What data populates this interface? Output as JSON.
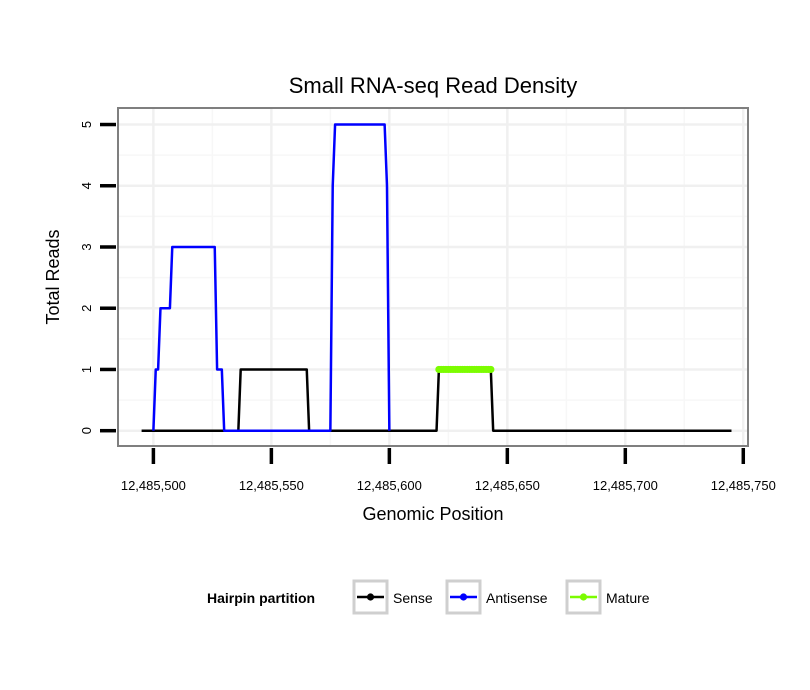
{
  "chart_data": {
    "type": "line",
    "title": "Small RNA-seq Read Density",
    "xlabel": "Genomic Position",
    "ylabel": "Total Reads",
    "xlim": [
      12485485,
      12485752
    ],
    "ylim": [
      -0.25,
      5.27
    ],
    "x_ticks": [
      12485500,
      12485550,
      12485600,
      12485650,
      12485700,
      12485750
    ],
    "x_tick_labels": [
      "12,485,500",
      "12,485,550",
      "12,485,600",
      "12,485,650",
      "12,485,700",
      "12,485,750"
    ],
    "y_ticks": [
      0,
      1,
      2,
      3,
      4,
      5
    ],
    "y_tick_labels": [
      "0",
      "1",
      "2",
      "3",
      "4",
      "5"
    ],
    "grid": true,
    "legend": {
      "title": "Hairpin partition",
      "position": "bottom",
      "entries": [
        "Sense",
        "Antisense",
        "Mature"
      ]
    },
    "series": [
      {
        "name": "Sense",
        "color": "#000000",
        "markers": false,
        "points": [
          [
            12485495,
            0
          ],
          [
            12485536,
            0
          ],
          [
            12485537,
            1
          ],
          [
            12485565,
            1
          ],
          [
            12485566,
            0
          ],
          [
            12485620,
            0
          ],
          [
            12485621,
            1
          ],
          [
            12485643,
            1
          ],
          [
            12485644,
            0
          ],
          [
            12485745,
            0
          ]
        ]
      },
      {
        "name": "Antisense",
        "color": "#0000ff",
        "markers": false,
        "points": [
          [
            12485500,
            0
          ],
          [
            12485501,
            1
          ],
          [
            12485502,
            1
          ],
          [
            12485503,
            2
          ],
          [
            12485507,
            2
          ],
          [
            12485508,
            3
          ],
          [
            12485526,
            3
          ],
          [
            12485527,
            1
          ],
          [
            12485529,
            1
          ],
          [
            12485530,
            0
          ],
          [
            12485575,
            0
          ],
          [
            12485576,
            4
          ],
          [
            12485577,
            5
          ],
          [
            12485598,
            5
          ],
          [
            12485599,
            4
          ],
          [
            12485600,
            0
          ]
        ]
      },
      {
        "name": "Mature",
        "color": "#7cfc00",
        "markers": true,
        "points": [
          [
            12485621,
            1
          ],
          [
            12485622,
            1
          ],
          [
            12485623,
            1
          ],
          [
            12485624,
            1
          ],
          [
            12485625,
            1
          ],
          [
            12485626,
            1
          ],
          [
            12485627,
            1
          ],
          [
            12485628,
            1
          ],
          [
            12485629,
            1
          ],
          [
            12485630,
            1
          ],
          [
            12485631,
            1
          ],
          [
            12485632,
            1
          ],
          [
            12485633,
            1
          ],
          [
            12485634,
            1
          ],
          [
            12485635,
            1
          ],
          [
            12485636,
            1
          ],
          [
            12485637,
            1
          ],
          [
            12485638,
            1
          ],
          [
            12485639,
            1
          ],
          [
            12485640,
            1
          ],
          [
            12485641,
            1
          ],
          [
            12485642,
            1
          ],
          [
            12485643,
            1
          ]
        ]
      }
    ]
  }
}
